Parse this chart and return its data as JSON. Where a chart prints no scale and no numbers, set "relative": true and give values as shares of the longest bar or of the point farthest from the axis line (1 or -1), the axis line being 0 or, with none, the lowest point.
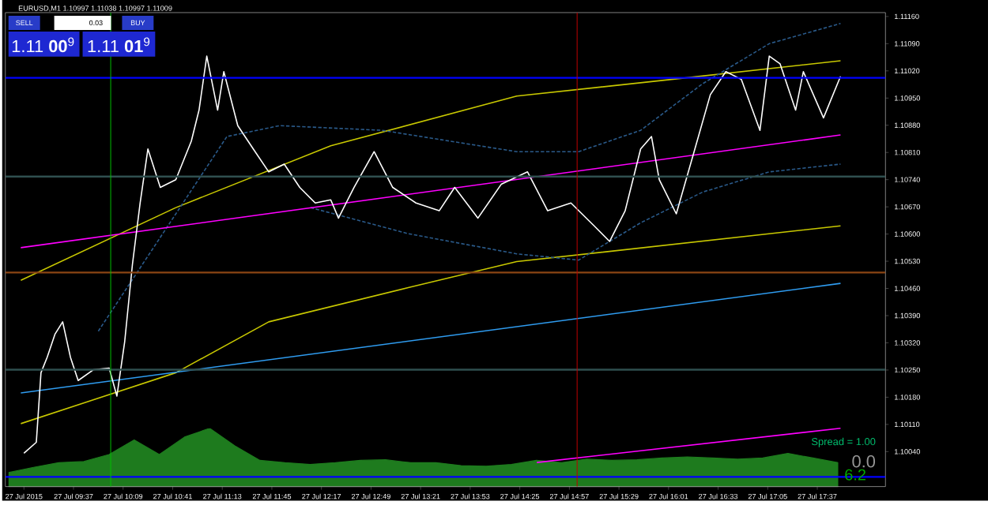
{
  "chart_data": [
    {
      "type": "line",
      "title": "EURUSD,M1  1.10997 1.11038 1.10997 1.11009",
      "xlim": [
        "2015-07-27T08:53",
        "2015-07-27T18:21"
      ],
      "ylim": [
        1.0995,
        1.1117
      ],
      "xticks": [
        {
          "value": "2015-07-27T09:05",
          "label": "27 Jul 2015"
        },
        {
          "value": "2015-07-27T09:37",
          "label": "27 Jul 09:37"
        },
        {
          "value": "2015-07-27T10:09",
          "label": "27 Jul 10:09"
        },
        {
          "value": "2015-07-27T10:41",
          "label": "27 Jul 10:41"
        },
        {
          "value": "2015-07-27T11:13",
          "label": "27 Jul 11:13"
        },
        {
          "value": "2015-07-27T11:45",
          "label": "27 Jul 11:45"
        },
        {
          "value": "2015-07-27T12:17",
          "label": "27 Jul 12:17"
        },
        {
          "value": "2015-07-27T12:49",
          "label": "27 Jul 12:49"
        },
        {
          "value": "2015-07-27T13:21",
          "label": "27 Jul 13:21"
        },
        {
          "value": "2015-07-27T13:53",
          "label": "27 Jul 13:53"
        },
        {
          "value": "2015-07-27T14:25",
          "label": "27 Jul 14:25"
        },
        {
          "value": "2015-07-27T14:57",
          "label": "27 Jul 14:57"
        },
        {
          "value": "2015-07-27T15:29",
          "label": "27 Jul 15:29"
        },
        {
          "value": "2015-07-27T16:01",
          "label": "27 Jul 16:01"
        },
        {
          "value": "2015-07-27T16:33",
          "label": "27 Jul 16:33"
        },
        {
          "value": "2015-07-27T17:05",
          "label": "27 Jul 17:05"
        },
        {
          "value": "2015-07-27T17:37",
          "label": "27 Jul 17:37"
        }
      ],
      "yticks": [
        {
          "value": 1.1004,
          "label": "1.10040"
        },
        {
          "value": 1.1011,
          "label": "1.10110"
        },
        {
          "value": 1.1018,
          "label": "1.10180"
        },
        {
          "value": 1.1025,
          "label": "1.10250"
        },
        {
          "value": 1.1032,
          "label": "1.10320"
        },
        {
          "value": 1.1039,
          "label": "1.10390"
        },
        {
          "value": 1.1046,
          "label": "1.10460"
        },
        {
          "value": 1.1053,
          "label": "1.10530"
        },
        {
          "value": 1.106,
          "label": "1.10600"
        },
        {
          "value": 1.1067,
          "label": "1.10670"
        },
        {
          "value": 1.1074,
          "label": "1.10740"
        },
        {
          "value": 1.1081,
          "label": "1.10810"
        },
        {
          "value": 1.1088,
          "label": "1.10880"
        },
        {
          "value": 1.1095,
          "label": "1.10950"
        },
        {
          "value": 1.1102,
          "label": "1.11020"
        },
        {
          "value": 1.1109,
          "label": "1.11090"
        },
        {
          "value": 1.1116,
          "label": "1.11160"
        }
      ],
      "series": [
        {
          "type": "line",
          "color": "#c8c800",
          "x": [
            "2015-07-27T09:03",
            "2015-07-27T10:43",
            "2015-07-27T12:23",
            "2015-07-27T14:23",
            "2015-07-27T16:03",
            "2015-07-27T17:52"
          ],
          "values": [
            1.10481,
            1.10668,
            1.10827,
            1.10955,
            1.10998,
            1.11046
          ]
        },
        {
          "type": "line",
          "color": "#c8c800",
          "x": [
            "2015-07-27T09:03",
            "2015-07-27T10:43",
            "2015-07-27T11:43",
            "2015-07-27T13:13",
            "2015-07-27T14:23",
            "2015-07-27T17:52"
          ],
          "values": [
            1.10112,
            1.10243,
            1.10374,
            1.10462,
            1.10529,
            1.10621
          ]
        },
        {
          "type": "line",
          "color": "#2a5a8a",
          "line_style": "dashed",
          "x": [
            "2015-07-27T09:53",
            "2015-07-27T11:16",
            "2015-07-27T11:50",
            "2015-07-27T12:56",
            "2015-07-27T14:23",
            "2015-07-27T15:03",
            "2015-07-27T15:43",
            "2015-07-27T16:23",
            "2015-07-27T17:06",
            "2015-07-27T17:52"
          ],
          "values": [
            1.1035,
            1.10851,
            1.10879,
            1.10867,
            1.10812,
            1.10812,
            1.10867,
            1.10987,
            1.1109,
            1.11142
          ]
        },
        {
          "type": "line",
          "color": "#2a5a8a",
          "line_style": "dashed",
          "x": [
            "2015-07-27T12:10",
            "2015-07-27T13:13",
            "2015-07-27T14:23",
            "2015-07-27T15:03",
            "2015-07-27T15:43",
            "2015-07-27T16:23",
            "2015-07-27T17:06",
            "2015-07-27T17:52"
          ],
          "values": [
            1.10668,
            1.10601,
            1.10549,
            1.10533,
            1.10629,
            1.10708,
            1.1076,
            1.1078
          ]
        },
        {
          "type": "line",
          "color": "#2f9cf0",
          "x": [
            "2015-07-27T09:03",
            "2015-07-27T17:52"
          ],
          "values": [
            1.10191,
            1.10473
          ]
        },
        {
          "type": "line",
          "color": "#ff00ff",
          "x": [
            "2015-07-27T09:03",
            "2015-07-27T17:52"
          ],
          "values": [
            1.10565,
            1.10855
          ]
        },
        {
          "type": "line",
          "color": "#ff00ff",
          "x": [
            "2015-07-27T14:36",
            "2015-07-27T17:52"
          ],
          "values": [
            1.10012,
            1.101
          ]
        },
        {
          "type": "line",
          "color": "#ffffff",
          "x": [
            "2015-07-27T09:05",
            "2015-07-27T09:13",
            "2015-07-27T09:16",
            "2015-07-27T09:20",
            "2015-07-27T09:25",
            "2015-07-27T09:30",
            "2015-07-27T09:35",
            "2015-07-27T09:40",
            "2015-07-27T09:50",
            "2015-07-27T10:00",
            "2015-07-27T10:05",
            "2015-07-27T10:10",
            "2015-07-27T10:15",
            "2015-07-27T10:20",
            "2015-07-27T10:25",
            "2015-07-27T10:33",
            "2015-07-27T10:43",
            "2015-07-27T10:53",
            "2015-07-27T10:58",
            "2015-07-27T11:03",
            "2015-07-27T11:10",
            "2015-07-27T11:14",
            "2015-07-27T11:23",
            "2015-07-27T11:33",
            "2015-07-27T11:43",
            "2015-07-27T11:53",
            "2015-07-27T12:03",
            "2015-07-27T12:13",
            "2015-07-27T12:23",
            "2015-07-27T12:28",
            "2015-07-27T12:38",
            "2015-07-27T12:51",
            "2015-07-27T13:03",
            "2015-07-27T13:18",
            "2015-07-27T13:33",
            "2015-07-27T13:43",
            "2015-07-27T13:58",
            "2015-07-27T14:13",
            "2015-07-27T14:30",
            "2015-07-27T14:43",
            "2015-07-27T14:58",
            "2015-07-27T15:13",
            "2015-07-27T15:23",
            "2015-07-27T15:33",
            "2015-07-27T15:43",
            "2015-07-27T15:50",
            "2015-07-27T15:55",
            "2015-07-27T16:06",
            "2015-07-27T16:18",
            "2015-07-27T16:28",
            "2015-07-27T16:38",
            "2015-07-27T16:48",
            "2015-07-27T17:00",
            "2015-07-27T17:06",
            "2015-07-27T17:13",
            "2015-07-27T17:23",
            "2015-07-27T17:28",
            "2015-07-27T17:41",
            "2015-07-27T17:52"
          ],
          "values": [
            1.10036,
            1.10064,
            1.10243,
            1.10283,
            1.10342,
            1.10374,
            1.10283,
            1.10223,
            1.10251,
            1.10255,
            1.10183,
            1.10322,
            1.10521,
            1.1068,
            1.10819,
            1.1072,
            1.1074,
            1.10839,
            1.10919,
            1.11058,
            1.10919,
            1.11018,
            1.10879,
            1.10819,
            1.1076,
            1.1078,
            1.1072,
            1.1068,
            1.10688,
            1.10641,
            1.1072,
            1.10812,
            1.1072,
            1.1068,
            1.1066,
            1.1072,
            1.10641,
            1.10728,
            1.1076,
            1.1066,
            1.1068,
            1.10621,
            1.10581,
            1.1066,
            1.10819,
            1.10851,
            1.1074,
            1.10652,
            1.10819,
            1.10959,
            1.11018,
            1.10998,
            1.10867,
            1.11058,
            1.11038,
            1.10919,
            1.11018,
            1.10899,
            1.11006
          ]
        }
      ],
      "ref_lines": [
        {
          "axis": "y",
          "value": 1.11002,
          "color": "#0000ff"
        },
        {
          "axis": "y",
          "value": 1.10748,
          "color": "#2f4f4f"
        },
        {
          "axis": "y",
          "value": 1.10501,
          "color": "#8b4513"
        },
        {
          "axis": "y",
          "value": 1.10251,
          "color": "#2f4f4f"
        },
        {
          "axis": "y",
          "value": 1.09975,
          "color": "#0000ff"
        },
        {
          "axis": "x",
          "value": "2015-07-27T10:01",
          "color": "#00c000"
        },
        {
          "axis": "x",
          "value": "2015-07-27T15:02",
          "color": "#c00000"
        }
      ],
      "annotations": [
        "SELL",
        "0.03",
        "BUY",
        "1.11 **00**$^{9}$",
        "1.11 **01**$^{9}$",
        "Spread = 1.00",
        "0.0",
        "6.2"
      ]
    },
    {
      "type": "area",
      "relative": true,
      "color": "#1e7b1e",
      "categories": [
        null,
        null,
        null,
        null,
        null,
        null,
        null,
        null,
        null,
        null,
        null,
        null,
        null,
        null,
        null,
        null,
        null,
        null,
        null,
        null,
        null,
        null,
        null,
        null,
        null,
        null,
        null,
        null,
        null,
        null,
        null,
        null,
        null,
        null
      ],
      "values": [
        0.24,
        0.33,
        0.41,
        0.43,
        0.55,
        0.8,
        0.55,
        0.85,
        1,
        0.7,
        0.45,
        0.41,
        0.38,
        0.41,
        0.45,
        0.46,
        0.41,
        0.41,
        0.36,
        0.35,
        0.38,
        0.45,
        0.41,
        0.47,
        0.45,
        0.46,
        0.49,
        0.51,
        0.49,
        0.47,
        0.49,
        0.57,
        0.49,
        0.41
      ]
    }
  ]
}
